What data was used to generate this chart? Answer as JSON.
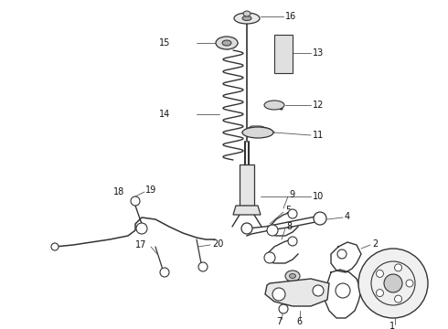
{
  "bg_color": "#ffffff",
  "line_color": "#333333",
  "label_color": "#111111",
  "figsize": [
    4.9,
    3.6
  ],
  "dpi": 100
}
